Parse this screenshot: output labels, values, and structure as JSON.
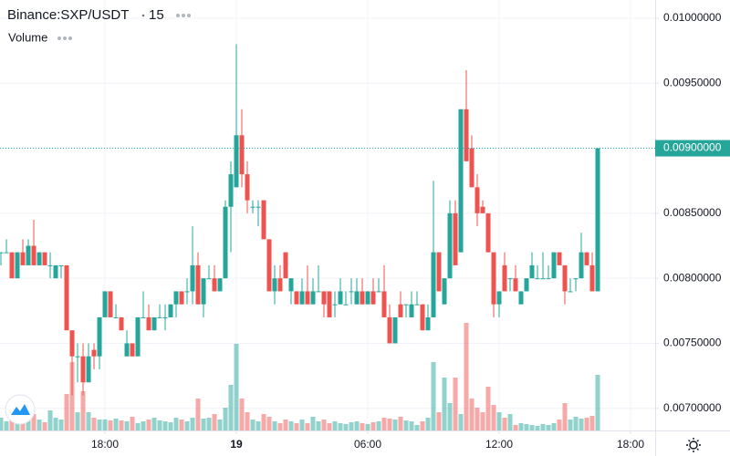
{
  "chart_data": {
    "type": "candlestick",
    "title": "Binance:SXP/USDT",
    "interval": "15",
    "volume_label": "Volume",
    "up_color": "#26a69a",
    "down_color": "#ef5350",
    "grid": true,
    "ylim": [
      0.00683,
      0.01014
    ],
    "yticks": [
      {
        "value": 0.007,
        "label": "0.00700000"
      },
      {
        "value": 0.0075,
        "label": "0.00750000"
      },
      {
        "value": 0.008,
        "label": "0.00800000"
      },
      {
        "value": 0.0085,
        "label": "0.00850000"
      },
      {
        "value": 0.009,
        "label": "0.00900000"
      },
      {
        "value": 0.0095,
        "label": "0.00950000"
      },
      {
        "value": 0.01,
        "label": "0.01000000"
      }
    ],
    "xlim": [
      -0.17,
      119.5
    ],
    "xticks": [
      {
        "value": 19,
        "label": "18:00"
      },
      {
        "value": 43,
        "label": "19"
      },
      {
        "value": 67,
        "label": "06:00"
      },
      {
        "value": 91,
        "label": "12:00"
      },
      {
        "value": 115,
        "label": "18:00"
      }
    ],
    "last_price": {
      "value": 0.009,
      "label": "0.00900000"
    },
    "open": [
      0.0082,
      0.0082,
      0.0082,
      0.008,
      0.0082,
      0.0081,
      0.00825,
      0.0081,
      0.0082,
      0.0081,
      0.008,
      0.0081,
      0.0081,
      0.0076,
      0.0074,
      0.0074,
      0.0072,
      0.00745,
      0.0074,
      0.0077,
      0.0079,
      0.0077,
      0.0077,
      0.0074,
      0.0075,
      0.0074,
      0.0077,
      0.0077,
      0.0076,
      0.0077,
      0.0077,
      0.0077,
      0.0078,
      0.0079,
      0.0079,
      0.0079,
      0.0081,
      0.0078,
      0.008,
      0.008,
      0.0079,
      0.008,
      0.00855,
      0.0087,
      0.0091,
      0.0088,
      0.00855,
      0.00855,
      0.0086,
      0.0083,
      0.0079,
      0.008,
      0.0082,
      0.0079,
      0.0079,
      0.0078,
      0.0079,
      0.0078,
      0.0079,
      0.0079,
      0.0079,
      0.0078,
      0.0078,
      0.0078,
      0.0079,
      0.0078,
      0.0079,
      0.0078,
      0.0079,
      0.0079,
      0.0079,
      0.0077,
      0.0075,
      0.0078,
      0.0078,
      0.0077,
      0.0078,
      0.0078,
      0.0076,
      0.0077,
      0.0082,
      0.0078,
      0.008,
      0.0085,
      0.0082,
      0.0093,
      0.009,
      0.0087,
      0.00855,
      0.0085,
      0.0082,
      0.0078,
      0.0081,
      0.008,
      0.008,
      0.0078,
      0.0079,
      0.008,
      0.008,
      0.008,
      0.008,
      0.008,
      0.0082,
      0.0081,
      0.0079,
      0.008,
      0.008,
      0.0082,
      0.0081,
      0.0079
    ],
    "high": [
      0.0082,
      0.0083,
      0.0082,
      0.0082,
      0.0083,
      0.0083,
      0.00845,
      0.0082,
      0.0082,
      0.0082,
      0.0081,
      0.0081,
      0.0081,
      0.0076,
      0.0075,
      0.0075,
      0.0075,
      0.0075,
      0.0077,
      0.0079,
      0.0079,
      0.0078,
      0.0077,
      0.0076,
      0.0075,
      0.0077,
      0.0079,
      0.0078,
      0.0077,
      0.0078,
      0.0078,
      0.0078,
      0.0079,
      0.0079,
      0.008,
      0.0084,
      0.0082,
      0.008,
      0.0081,
      0.0081,
      0.008,
      0.0086,
      0.0089,
      0.0098,
      0.0093,
      0.0089,
      0.0086,
      0.0086,
      0.0086,
      0.0083,
      0.0081,
      0.0081,
      0.0082,
      0.008,
      0.0079,
      0.008,
      0.0081,
      0.008,
      0.0081,
      0.0079,
      0.0079,
      0.0079,
      0.008,
      0.0079,
      0.008,
      0.008,
      0.008,
      0.0079,
      0.008,
      0.008,
      0.0081,
      0.0078,
      0.0077,
      0.0079,
      0.0078,
      0.0079,
      0.0079,
      0.0078,
      0.0078,
      0.00875,
      0.0082,
      0.008,
      0.0086,
      0.0086,
      0.0093,
      0.0096,
      0.0091,
      0.0088,
      0.0086,
      0.0085,
      0.0082,
      0.0079,
      0.0082,
      0.008,
      0.0081,
      0.0079,
      0.008,
      0.0082,
      0.0081,
      0.0082,
      0.0081,
      0.0082,
      0.0082,
      0.0081,
      0.008,
      0.008,
      0.00835,
      0.0082,
      0.0082,
      0.009
    ],
    "low": [
      0.0081,
      0.0082,
      0.008,
      0.008,
      0.0081,
      0.0081,
      0.0081,
      0.0081,
      0.0081,
      0.008,
      0.008,
      0.008,
      0.0076,
      0.0071,
      0.0072,
      0.0071,
      0.0072,
      0.0073,
      0.0073,
      0.0077,
      0.0077,
      0.0077,
      0.0076,
      0.0074,
      0.0074,
      0.0074,
      0.0077,
      0.0076,
      0.0076,
      0.0077,
      0.0076,
      0.0077,
      0.0077,
      0.0078,
      0.0078,
      0.0078,
      0.0078,
      0.0077,
      0.008,
      0.0079,
      0.0079,
      0.008,
      0.0082,
      0.0087,
      0.0087,
      0.0085,
      0.0085,
      0.0084,
      0.0083,
      0.0079,
      0.0078,
      0.0079,
      0.008,
      0.0078,
      0.0078,
      0.0078,
      0.0078,
      0.0078,
      0.0079,
      0.0077,
      0.0077,
      0.0077,
      0.0078,
      0.0078,
      0.0078,
      0.0078,
      0.0078,
      0.0078,
      0.0078,
      0.0079,
      0.0077,
      0.0075,
      0.0075,
      0.0077,
      0.0077,
      0.0077,
      0.0078,
      0.0076,
      0.0076,
      0.0077,
      0.0079,
      0.0078,
      0.008,
      0.0081,
      0.0082,
      0.0089,
      0.0087,
      0.0084,
      0.0085,
      0.0082,
      0.0077,
      0.0077,
      0.0079,
      0.0079,
      0.0079,
      0.0078,
      0.0079,
      0.008,
      0.008,
      0.008,
      0.008,
      0.008,
      0.0081,
      0.0078,
      0.0079,
      0.0079,
      0.008,
      0.0081,
      0.0079,
      0.0079
    ],
    "close": [
      0.0082,
      0.0082,
      0.008,
      0.0082,
      0.0081,
      0.00825,
      0.0081,
      0.0082,
      0.0081,
      0.0081,
      0.0081,
      0.0081,
      0.0076,
      0.0074,
      0.0074,
      0.0072,
      0.0074,
      0.0074,
      0.0077,
      0.0079,
      0.0077,
      0.0077,
      0.0076,
      0.0075,
      0.0074,
      0.0077,
      0.0077,
      0.0076,
      0.0077,
      0.0077,
      0.0077,
      0.0078,
      0.0079,
      0.0078,
      0.0079,
      0.0081,
      0.0078,
      0.008,
      0.008,
      0.0079,
      0.008,
      0.00855,
      0.0088,
      0.0091,
      0.0088,
      0.0086,
      0.00855,
      0.00855,
      0.0083,
      0.0079,
      0.008,
      0.0079,
      0.008,
      0.008,
      0.0078,
      0.0079,
      0.0078,
      0.0079,
      0.0079,
      0.0078,
      0.0077,
      0.0078,
      0.0079,
      0.0078,
      0.0079,
      0.0079,
      0.0078,
      0.0079,
      0.0078,
      0.0079,
      0.0077,
      0.0075,
      0.0077,
      0.0077,
      0.0078,
      0.0078,
      0.0078,
      0.0076,
      0.0077,
      0.0082,
      0.0079,
      0.008,
      0.0085,
      0.0081,
      0.0093,
      0.0089,
      0.0087,
      0.0085,
      0.0085,
      0.0082,
      0.0078,
      0.0079,
      0.0079,
      0.008,
      0.0079,
      0.0079,
      0.008,
      0.0081,
      0.008,
      0.008,
      0.008,
      0.0082,
      0.0081,
      0.0079,
      0.0079,
      0.008,
      0.0082,
      0.0081,
      0.0079,
      0.009
    ],
    "volume": [
      14,
      10,
      12,
      8,
      10,
      14,
      18,
      12,
      9,
      22,
      14,
      12,
      40,
      75,
      20,
      43,
      20,
      14,
      12,
      12,
      11,
      13,
      11,
      10,
      15,
      8,
      10,
      12,
      14,
      11,
      10,
      9,
      14,
      12,
      10,
      14,
      35,
      13,
      14,
      18,
      12,
      25,
      50,
      95,
      35,
      20,
      12,
      10,
      18,
      15,
      10,
      8,
      12,
      10,
      8,
      12,
      8,
      15,
      10,
      12,
      8,
      10,
      8,
      7,
      9,
      10,
      8,
      7,
      9,
      10,
      14,
      13,
      12,
      15,
      11,
      10,
      6,
      10,
      14,
      75,
      20,
      58,
      30,
      58,
      18,
      118,
      35,
      25,
      20,
      48,
      28,
      20,
      14,
      18,
      6,
      8,
      7,
      6,
      5,
      7,
      6,
      8,
      12,
      30,
      12,
      15,
      13,
      14,
      16,
      61
    ]
  }
}
